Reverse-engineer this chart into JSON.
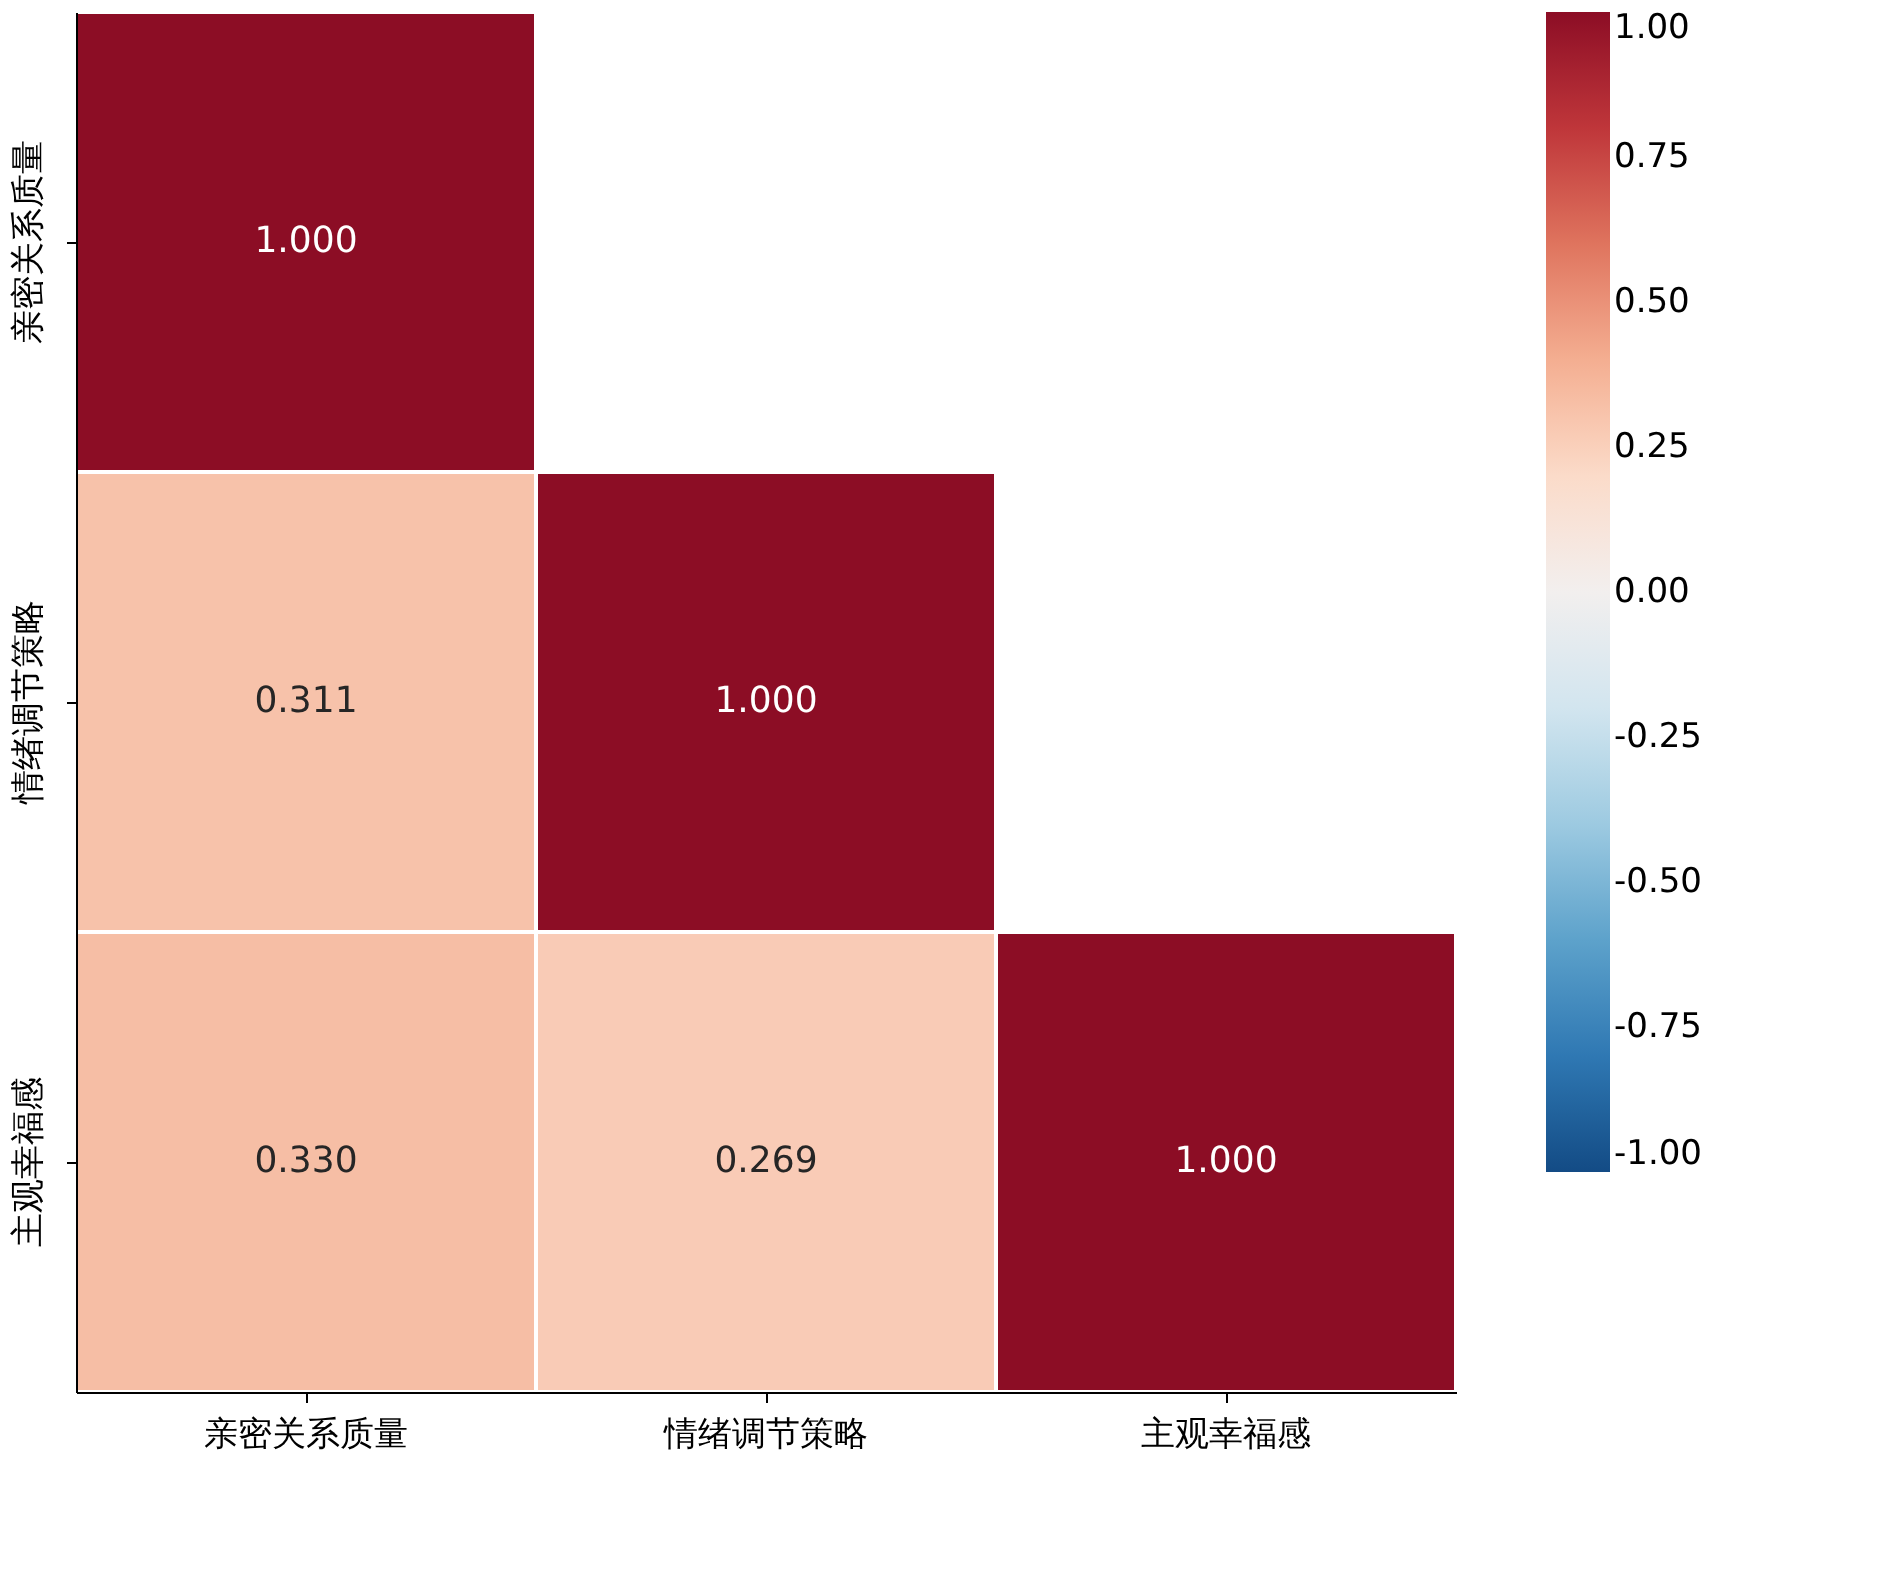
{
  "chart_data": {
    "type": "heatmap",
    "categories": [
      "亲密关系质量",
      "情绪调节策略",
      "主观幸福感"
    ],
    "y_categories": [
      "亲密关系质量",
      "情绪调节策略",
      "主观幸福感"
    ],
    "cells": [
      [
        1.0,
        null,
        null
      ],
      [
        0.311,
        1.0,
        null
      ],
      [
        0.33,
        0.269,
        1.0
      ]
    ],
    "cell_labels": [
      [
        "1.000",
        null,
        null
      ],
      [
        "0.311",
        "1.000",
        null
      ],
      [
        "0.330",
        "0.269",
        "1.000"
      ]
    ],
    "clim": [
      -1,
      1
    ],
    "cticks": [
      {
        "value": -1,
        "label": "-1.00"
      },
      {
        "value": -0.75,
        "label": "-0.75"
      },
      {
        "value": -0.5,
        "label": "-0.50"
      },
      {
        "value": -0.25,
        "label": "-0.25"
      },
      {
        "value": 0,
        "label": "0.00"
      },
      {
        "value": 0.25,
        "label": "0.25"
      },
      {
        "value": 0.5,
        "label": "0.50"
      },
      {
        "value": 0.75,
        "label": "0.75"
      },
      {
        "value": 1,
        "label": "1.00"
      }
    ]
  }
}
